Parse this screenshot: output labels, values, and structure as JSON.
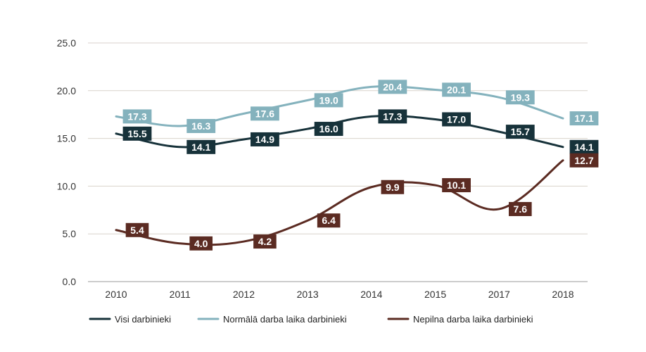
{
  "chart_data": {
    "type": "line",
    "title": "",
    "xlabel": "",
    "ylabel": "",
    "categories": [
      "2010",
      "2011",
      "2012",
      "2013",
      "2014",
      "2015",
      "2017",
      "2018"
    ],
    "ylim": [
      0,
      25
    ],
    "yticks": [
      "0.0",
      "5.0",
      "10.0",
      "15.0",
      "20.0",
      "25.0"
    ],
    "grid": true,
    "legend_position": "bottom",
    "series": [
      {
        "name": "Visi darbinieki",
        "color": "#17323a",
        "values": [
          15.5,
          14.1,
          14.9,
          16.0,
          17.3,
          17.0,
          15.7,
          14.1
        ],
        "labels": [
          "15.5",
          "14.1",
          "14.9",
          "16.0",
          "17.3",
          "17.0",
          "15.7",
          "14.1"
        ]
      },
      {
        "name": "Normālā darba laika darbinieki",
        "color": "#84b2bd",
        "values": [
          17.3,
          16.3,
          17.6,
          19.0,
          20.4,
          20.1,
          19.3,
          17.1
        ],
        "labels": [
          "17.3",
          "16.3",
          "17.6",
          "19.0",
          "20.4",
          "20.1",
          "19.3",
          "17.1"
        ]
      },
      {
        "name": "Nepilna darba laika darbinieki",
        "color": "#5b2b22",
        "values": [
          5.4,
          4.0,
          4.2,
          6.4,
          9.9,
          10.1,
          7.6,
          12.7
        ],
        "labels": [
          "5.4",
          "4.0",
          "4.2",
          "6.4",
          "9.9",
          "10.1",
          "7.6",
          "12.7"
        ]
      }
    ]
  }
}
